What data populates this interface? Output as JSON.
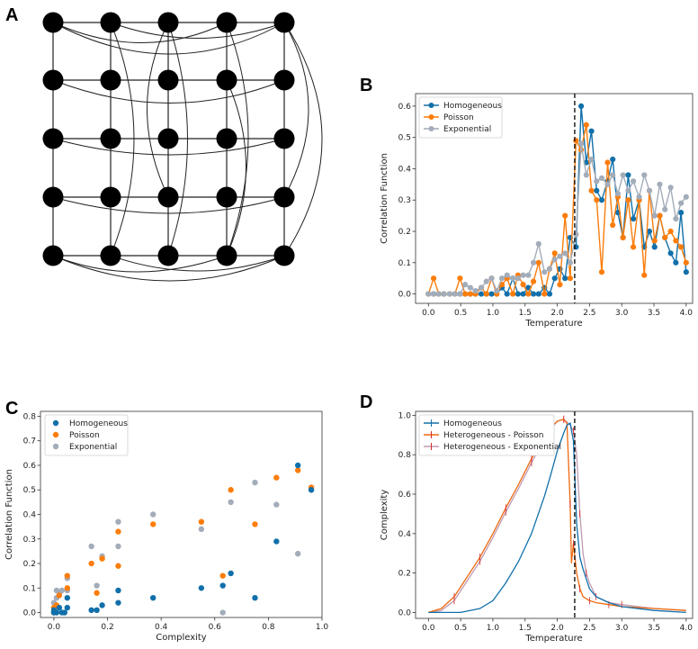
{
  "panels": {
    "A": {
      "letter": "A"
    },
    "B": {
      "letter": "B"
    },
    "C": {
      "letter": "C"
    },
    "D": {
      "letter": "D"
    }
  },
  "colors": {
    "homogeneous": "#1170aa",
    "poisson": "#fc7d0b",
    "exponential": "#a3acb9",
    "heterogeneous_poisson": "#ee6a10",
    "heterogeneous_exponential": "#c09bb0",
    "errorbar": "#d62728",
    "critical_line": "#000000"
  },
  "chart_data": [
    {
      "id": "A",
      "type": "diagram",
      "description_label": "5x5 lattice network with long-range links",
      "rows": 5,
      "cols": 5,
      "long_range_links": 16
    },
    {
      "id": "B",
      "type": "line",
      "xlabel": "Temperature",
      "ylabel": "Correlation Function",
      "xlim": [
        -0.2,
        4.1
      ],
      "ylim": [
        -0.03,
        0.64
      ],
      "xticks": [
        0.0,
        0.5,
        1.0,
        1.5,
        2.0,
        2.5,
        3.0,
        3.5,
        4.0
      ],
      "xtick_labels": [
        "0.0",
        "0.5",
        "1.0",
        "1.5",
        "2.0",
        "2.5",
        "3.0",
        "3.5",
        "4.0"
      ],
      "yticks": [
        0.0,
        0.1,
        0.2,
        0.3,
        0.4,
        0.5,
        0.6
      ],
      "ytick_labels": [
        "0.0",
        "0.1",
        "0.2",
        "0.3",
        "0.4",
        "0.5",
        "0.6"
      ],
      "vline": 2.27,
      "legend_position": "upper-left",
      "x": [
        0.0,
        0.08,
        0.16,
        0.24,
        0.33,
        0.41,
        0.49,
        0.57,
        0.65,
        0.73,
        0.82,
        0.9,
        0.98,
        1.06,
        1.14,
        1.22,
        1.31,
        1.39,
        1.47,
        1.55,
        1.63,
        1.71,
        1.8,
        1.88,
        1.96,
        2.04,
        2.12,
        2.2,
        2.29,
        2.37,
        2.45,
        2.53,
        2.61,
        2.69,
        2.78,
        2.86,
        2.94,
        3.02,
        3.1,
        3.18,
        3.27,
        3.35,
        3.43,
        3.51,
        3.59,
        3.67,
        3.76,
        3.84,
        3.92,
        4.0
      ],
      "series": [
        {
          "name": "Homogeneous",
          "color_key": "homogeneous",
          "values": [
            0,
            0,
            0,
            0,
            0,
            0,
            0,
            0,
            0,
            0,
            0,
            0,
            0,
            0,
            0.02,
            0,
            0.05,
            0,
            0,
            0.02,
            0,
            0,
            0.02,
            0,
            0.05,
            0.08,
            0.05,
            0.18,
            0.15,
            0.6,
            0.42,
            0.52,
            0.33,
            0.3,
            0.36,
            0.43,
            0.26,
            0.18,
            0.38,
            0.24,
            0.3,
            0.15,
            0.2,
            0.15,
            0.25,
            0.18,
            0.13,
            0.1,
            0.26,
            0.07
          ]
        },
        {
          "name": "Poisson",
          "color_key": "poisson",
          "values": [
            0,
            0.05,
            0,
            0,
            0,
            0,
            0.05,
            0,
            0,
            0,
            0.02,
            0,
            0.05,
            0,
            0.03,
            0.05,
            0,
            0.06,
            0.03,
            0,
            0.04,
            0.1,
            0,
            0.08,
            0.13,
            0.03,
            0.25,
            0.05,
            0.49,
            0.46,
            0.54,
            0.33,
            0.3,
            0.07,
            0.42,
            0.22,
            0.31,
            0.18,
            0.3,
            0.15,
            0.3,
            0.06,
            0.33,
            0.17,
            0.25,
            0.18,
            0.2,
            0.17,
            0.15,
            0.1
          ]
        },
        {
          "name": "Exponential",
          "color_key": "exponential",
          "values": [
            0,
            0,
            0,
            0,
            0,
            0,
            0,
            0.03,
            0.02,
            0.01,
            0.02,
            0.04,
            0.05,
            0.01,
            0.05,
            0.06,
            0.05,
            0.05,
            0.06,
            0.06,
            0.1,
            0.16,
            0.07,
            0.08,
            0.11,
            0.12,
            0.13,
            0.1,
            0.19,
            0.48,
            0.38,
            0.43,
            0.36,
            0.37,
            0.35,
            0.38,
            0.32,
            0.38,
            0.33,
            0.36,
            0.31,
            0.38,
            0.33,
            0.25,
            0.35,
            0.27,
            0.34,
            0.24,
            0.29,
            0.31
          ]
        }
      ]
    },
    {
      "id": "C",
      "type": "scatter",
      "xlabel": "Complexity",
      "ylabel": "Correlation Function",
      "xlim": [
        -0.05,
        1.0
      ],
      "ylim": [
        -0.02,
        0.82
      ],
      "xticks": [
        0.0,
        0.2,
        0.4,
        0.6,
        0.8,
        1.0
      ],
      "xtick_labels": [
        "0.0",
        "0.2",
        "0.4",
        "0.6",
        "0.8",
        "1.0"
      ],
      "yticks": [
        0.0,
        0.1,
        0.2,
        0.3,
        0.4,
        0.5,
        0.6,
        0.7,
        0.8
      ],
      "ytick_labels": [
        "0.0",
        "0.1",
        "0.2",
        "0.3",
        "0.4",
        "0.5",
        "0.6",
        "0.7",
        "0.8"
      ],
      "legend_position": "upper-left",
      "series": [
        {
          "name": "Homogeneous",
          "color_key": "homogeneous",
          "points": [
            [
              0.0,
              0.0
            ],
            [
              0.0,
              0.01
            ],
            [
              0.01,
              0.0
            ],
            [
              0.02,
              0.02
            ],
            [
              0.03,
              0.0
            ],
            [
              0.04,
              0.0
            ],
            [
              0.05,
              0.06
            ],
            [
              0.05,
              0.02
            ],
            [
              0.14,
              0.01
            ],
            [
              0.16,
              0.01
            ],
            [
              0.18,
              0.03
            ],
            [
              0.24,
              0.09
            ],
            [
              0.24,
              0.04
            ],
            [
              0.37,
              0.06
            ],
            [
              0.55,
              0.1
            ],
            [
              0.63,
              0.11
            ],
            [
              0.66,
              0.16
            ],
            [
              0.75,
              0.06
            ],
            [
              0.83,
              0.29
            ],
            [
              0.91,
              0.6
            ],
            [
              0.96,
              0.5
            ]
          ]
        },
        {
          "name": "Poisson",
          "color_key": "poisson",
          "points": [
            [
              0.0,
              0.0
            ],
            [
              0.0,
              0.02
            ],
            [
              0.01,
              0.03
            ],
            [
              0.02,
              0.07
            ],
            [
              0.05,
              0.1
            ],
            [
              0.05,
              0.15
            ],
            [
              0.14,
              0.2
            ],
            [
              0.16,
              0.08
            ],
            [
              0.18,
              0.22
            ],
            [
              0.24,
              0.33
            ],
            [
              0.24,
              0.19
            ],
            [
              0.37,
              0.36
            ],
            [
              0.55,
              0.37
            ],
            [
              0.63,
              0.15
            ],
            [
              0.66,
              0.5
            ],
            [
              0.75,
              0.36
            ],
            [
              0.83,
              0.55
            ],
            [
              0.91,
              0.58
            ],
            [
              0.96,
              0.51
            ]
          ]
        },
        {
          "name": "Exponential",
          "color_key": "exponential",
          "points": [
            [
              0.0,
              0.0
            ],
            [
              0.0,
              0.04
            ],
            [
              0.01,
              0.06
            ],
            [
              0.01,
              0.09
            ],
            [
              0.02,
              0.08
            ],
            [
              0.03,
              0.09
            ],
            [
              0.05,
              0.09
            ],
            [
              0.05,
              0.14
            ],
            [
              0.14,
              0.27
            ],
            [
              0.16,
              0.11
            ],
            [
              0.18,
              0.23
            ],
            [
              0.24,
              0.37
            ],
            [
              0.24,
              0.27
            ],
            [
              0.37,
              0.4
            ],
            [
              0.55,
              0.34
            ],
            [
              0.63,
              0.0
            ],
            [
              0.66,
              0.45
            ],
            [
              0.75,
              0.53
            ],
            [
              0.83,
              0.44
            ],
            [
              0.91,
              0.24
            ],
            [
              0.96,
              0.5
            ]
          ]
        }
      ]
    },
    {
      "id": "D",
      "type": "line",
      "xlabel": "Temperature",
      "ylabel": "Complexity",
      "xlim": [
        -0.2,
        4.1
      ],
      "ylim": [
        -0.03,
        1.02
      ],
      "xticks": [
        0.0,
        0.5,
        1.0,
        1.5,
        2.0,
        2.5,
        3.0,
        3.5,
        4.0
      ],
      "xtick_labels": [
        "0.0",
        "0.5",
        "1.0",
        "1.5",
        "2.0",
        "2.5",
        "3.0",
        "3.5",
        "4.0"
      ],
      "yticks": [
        0.0,
        0.2,
        0.4,
        0.6,
        0.8,
        1.0
      ],
      "ytick_labels": [
        "0.0",
        "0.2",
        "0.4",
        "0.6",
        "0.8",
        "1.0"
      ],
      "vline": 2.27,
      "legend_position": "upper-left",
      "series": [
        {
          "name": "Homogeneous",
          "color_key": "homogeneous",
          "x": [
            0.0,
            0.5,
            0.8,
            1.0,
            1.2,
            1.4,
            1.6,
            1.8,
            1.9,
            2.0,
            2.1,
            2.15,
            2.2,
            2.25,
            2.3,
            2.35,
            2.4,
            2.5,
            2.6,
            2.8,
            3.0,
            3.5,
            4.0
          ],
          "values": [
            0.0,
            0.0,
            0.02,
            0.06,
            0.15,
            0.26,
            0.4,
            0.59,
            0.7,
            0.82,
            0.91,
            0.95,
            0.96,
            0.87,
            0.45,
            0.28,
            0.22,
            0.12,
            0.08,
            0.05,
            0.03,
            0.01,
            0.0
          ]
        },
        {
          "name": "Heterogeneous - Poisson",
          "color_key": "heterogeneous_poisson",
          "x": [
            0.0,
            0.2,
            0.4,
            0.6,
            0.8,
            1.0,
            1.2,
            1.4,
            1.6,
            1.8,
            1.9,
            2.0,
            2.1,
            2.15,
            2.2,
            2.22,
            2.25,
            2.3,
            2.35,
            2.4,
            2.5,
            2.6,
            2.8,
            3.0,
            3.5,
            4.0
          ],
          "values": [
            0.0,
            0.02,
            0.08,
            0.18,
            0.28,
            0.4,
            0.53,
            0.65,
            0.78,
            0.89,
            0.94,
            0.97,
            0.98,
            0.96,
            0.55,
            0.25,
            0.35,
            0.2,
            0.12,
            0.08,
            0.06,
            0.05,
            0.04,
            0.03,
            0.02,
            0.01
          ]
        },
        {
          "name": "Heterogeneous - Exponential",
          "color_key": "heterogeneous_exponential",
          "x": [
            0.0,
            0.2,
            0.4,
            0.6,
            0.8,
            1.0,
            1.2,
            1.4,
            1.6,
            1.8,
            1.9,
            2.0,
            2.1,
            2.2,
            2.25,
            2.3,
            2.35,
            2.4,
            2.45,
            2.5,
            2.6,
            2.8,
            3.0,
            3.5,
            4.0
          ],
          "values": [
            0.0,
            0.01,
            0.06,
            0.16,
            0.26,
            0.38,
            0.51,
            0.63,
            0.76,
            0.88,
            0.93,
            0.97,
            0.98,
            0.95,
            0.92,
            0.8,
            0.5,
            0.3,
            0.2,
            0.15,
            0.08,
            0.05,
            0.04,
            0.02,
            0.01
          ]
        }
      ]
    }
  ]
}
